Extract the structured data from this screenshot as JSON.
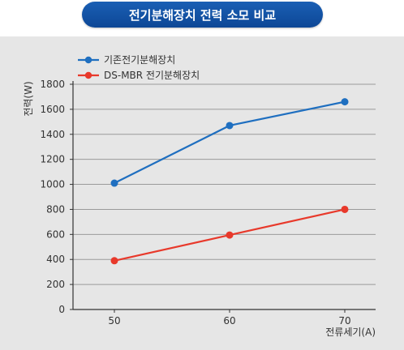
{
  "header": {
    "title": "전기분해장치 전력 소모 비교"
  },
  "colors": {
    "panel_bg": "#e6e6e6",
    "grid": "#9a9a9a",
    "axis": "#333333",
    "title_bg": "#1a5fb4"
  },
  "chart_data": {
    "type": "line",
    "title": "",
    "x": [
      50,
      60,
      70
    ],
    "categories": [
      "50",
      "60",
      "70"
    ],
    "xlabel": "전류세기(A)",
    "ylabel": "전력(W)",
    "ylim": [
      0,
      1800
    ],
    "yticks": [
      0,
      200,
      400,
      600,
      800,
      1000,
      1200,
      1400,
      1600,
      1800
    ],
    "grid": true,
    "legend_position": "top-left",
    "series": [
      {
        "name": "기존전기분해장치",
        "values": [
          1010,
          1470,
          1660
        ],
        "color": "#1f6fc0"
      },
      {
        "name": "DS-MBR 전기분해장치",
        "values": [
          390,
          595,
          800
        ],
        "color": "#e8392b"
      }
    ]
  }
}
